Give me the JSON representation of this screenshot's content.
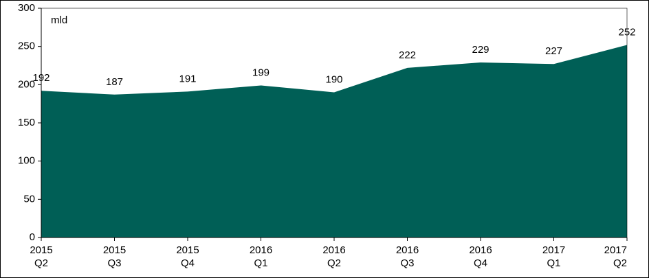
{
  "chart_data": {
    "type": "area",
    "annotation": "mld",
    "categories": [
      [
        "2015",
        "Q2"
      ],
      [
        "2015",
        "Q3"
      ],
      [
        "2015",
        "Q4"
      ],
      [
        "2016",
        "Q1"
      ],
      [
        "2016",
        "Q2"
      ],
      [
        "2016",
        "Q3"
      ],
      [
        "2016",
        "Q4"
      ],
      [
        "2017",
        "Q1"
      ],
      [
        "2017",
        "Q2"
      ]
    ],
    "values": [
      192,
      187,
      191,
      199,
      190,
      222,
      229,
      227,
      252
    ],
    "color": "#005f56",
    "ylim": [
      0,
      300
    ],
    "yticks": [
      0,
      50,
      100,
      150,
      200,
      250,
      300
    ],
    "grid": false
  }
}
